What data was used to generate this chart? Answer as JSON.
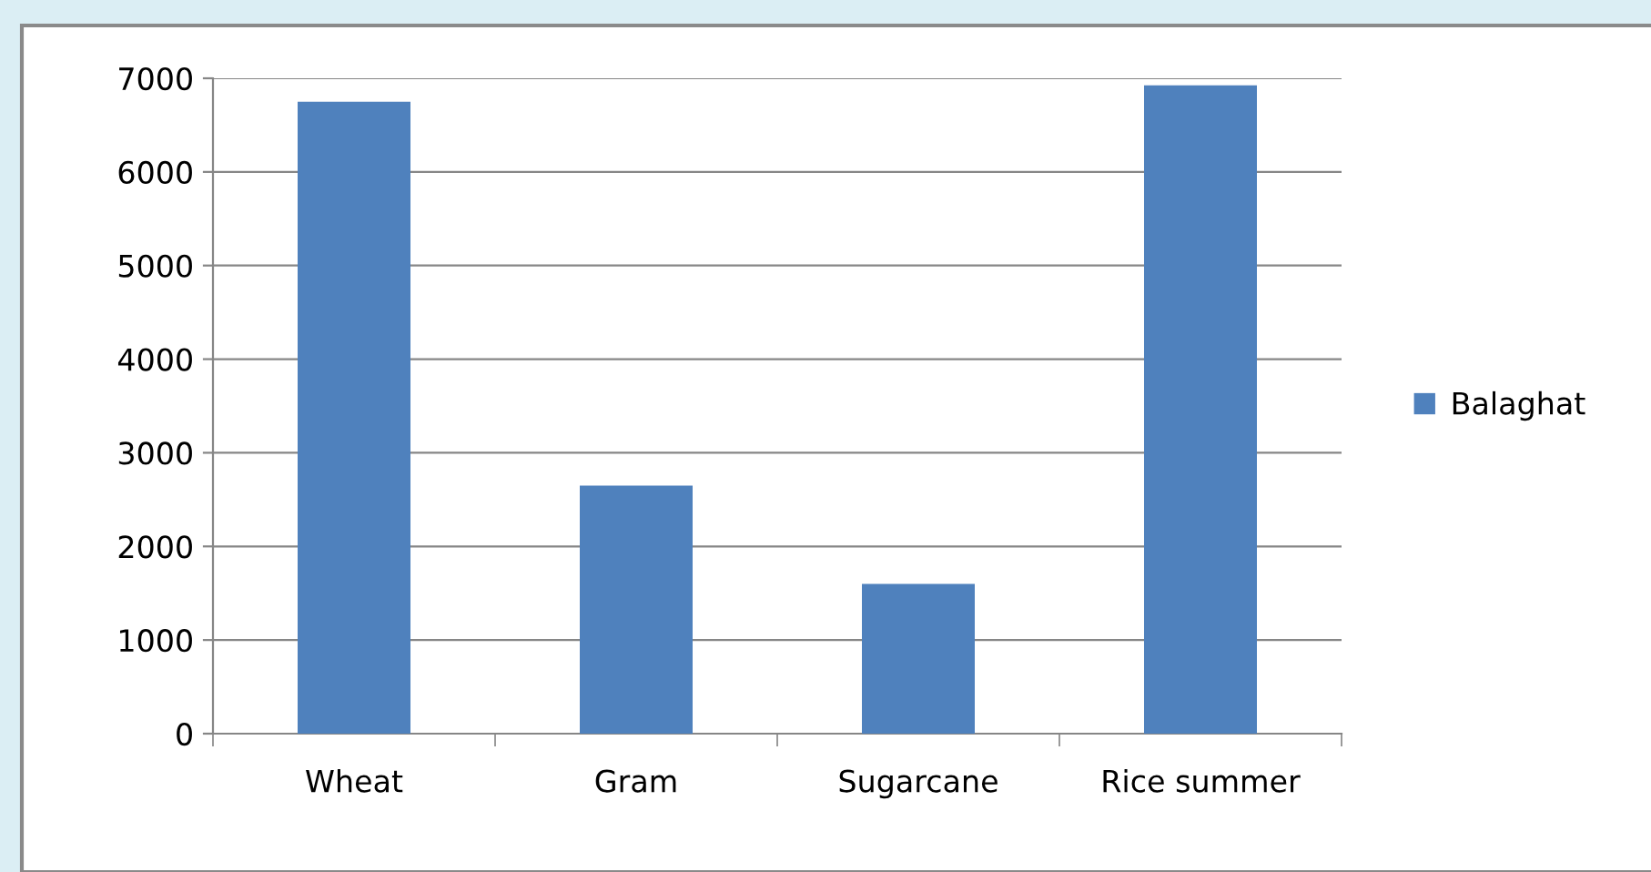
{
  "chart_data": {
    "type": "bar",
    "categories": [
      "Wheat",
      "Gram",
      "Sugarcane",
      "Rice summer"
    ],
    "series": [
      {
        "name": "Balaghat",
        "color": "#4f81bd",
        "values": [
          6750,
          2650,
          1600,
          6925
        ]
      }
    ],
    "ylim": [
      0,
      7000
    ],
    "yticks": [
      0,
      1000,
      2000,
      3000,
      4000,
      5000,
      6000,
      7000
    ],
    "grid": "y",
    "legend": "right"
  }
}
